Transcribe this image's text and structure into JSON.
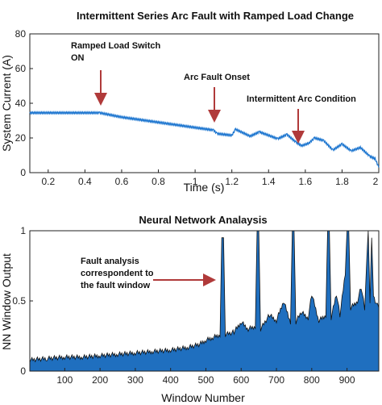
{
  "chart_data": [
    {
      "type": "line",
      "title": "Intermittent Series Arc Fault with Ramped Load Change",
      "xlabel": "Time (s)",
      "ylabel": "System Current (A)",
      "xlim": [
        0.1,
        2.0
      ],
      "ylim": [
        0,
        80
      ],
      "xticks": [
        "0.2",
        "0.4",
        "0.6",
        "0.8",
        "1",
        "1.2",
        "1.4",
        "1.6",
        "1.8",
        "2"
      ],
      "yticks": [
        "0",
        "20",
        "40",
        "60",
        "80"
      ],
      "grid": false,
      "color": "#1f77d0",
      "series": [
        {
          "x": [
            0.1,
            0.3,
            0.48,
            0.6,
            0.8,
            1.0,
            1.1,
            1.12,
            1.2,
            1.22,
            1.3,
            1.35,
            1.45,
            1.5,
            1.55,
            1.58,
            1.62,
            1.65,
            1.7,
            1.75,
            1.8,
            1.85,
            1.9,
            1.95,
            1.98,
            2.0
          ],
          "y": [
            34.5,
            34.5,
            34.5,
            32.0,
            29.0,
            26.0,
            24.5,
            22.5,
            21.5,
            25.0,
            21.0,
            23.5,
            19.5,
            22.0,
            17.5,
            15.5,
            17.0,
            20.0,
            18.5,
            13.0,
            16.5,
            12.5,
            14.5,
            9.5,
            8.0,
            3.0
          ]
        }
      ],
      "annotations": [
        {
          "text": "Ramped Load Switch",
          "x": 0.48,
          "y": 34.5
        },
        {
          "text": "ON",
          "x": 0.48,
          "y": 34.5
        },
        {
          "text": "Arc Fault Onset",
          "x": 1.1,
          "y": 26.0
        },
        {
          "text": "Intermittent Arc Condition",
          "x": 1.56,
          "y": 18.0
        }
      ]
    },
    {
      "type": "area",
      "title": "Neural Network Analaysis",
      "xlabel": "Window Number",
      "ylabel": "NN Window Output",
      "xlim": [
        1,
        990
      ],
      "ylim": [
        0,
        1
      ],
      "xticks": [
        "100",
        "200",
        "300",
        "400",
        "500",
        "600",
        "700",
        "800",
        "900"
      ],
      "yticks": [
        "0",
        "0.5",
        "1"
      ],
      "grid": false,
      "color": "#1f6fbf",
      "series": [
        {
          "x": [
            1,
            50,
            100,
            150,
            200,
            250,
            300,
            350,
            400,
            450,
            480,
            500,
            520,
            540,
            545,
            550,
            555,
            580,
            600,
            620,
            640,
            645,
            650,
            655,
            680,
            700,
            720,
            740,
            745,
            750,
            755,
            770,
            790,
            800,
            820,
            840,
            845,
            850,
            855,
            870,
            880,
            895,
            900,
            905,
            910,
            930,
            940,
            950,
            960,
            965,
            970,
            975,
            980,
            990
          ],
          "y": [
            0.08,
            0.09,
            0.1,
            0.1,
            0.11,
            0.12,
            0.13,
            0.14,
            0.15,
            0.17,
            0.19,
            0.22,
            0.24,
            0.26,
            0.95,
            0.95,
            0.26,
            0.28,
            0.35,
            0.3,
            0.32,
            1.0,
            1.0,
            0.3,
            0.4,
            0.36,
            0.5,
            0.35,
            1.0,
            1.0,
            0.35,
            0.42,
            0.38,
            0.55,
            0.36,
            0.4,
            1.0,
            1.0,
            0.38,
            0.55,
            0.4,
            0.7,
            1.0,
            1.0,
            0.45,
            0.5,
            0.6,
            0.45,
            1.0,
            0.5,
            0.95,
            0.55,
            0.5,
            0.45
          ]
        }
      ],
      "annotations": [
        {
          "text": "Fault analysis",
          "x": 545,
          "y": 0.55
        },
        {
          "text": "correspondent to",
          "x": 545,
          "y": 0.55
        },
        {
          "text": "the fault window",
          "x": 545,
          "y": 0.55
        }
      ]
    }
  ]
}
